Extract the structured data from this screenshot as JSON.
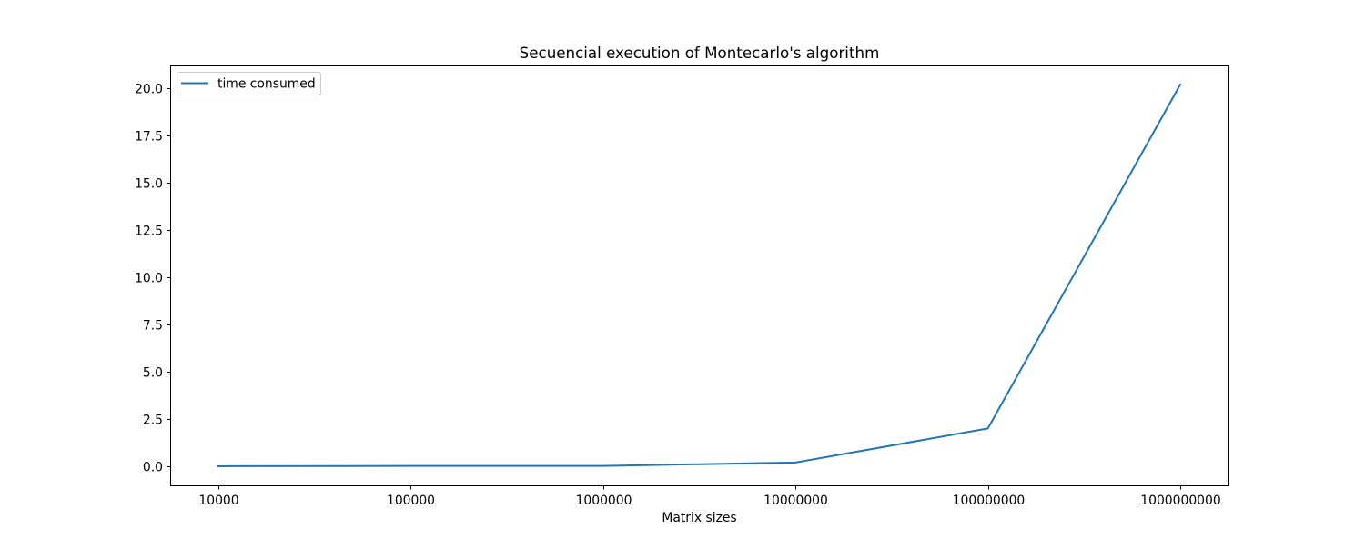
{
  "chart_data": {
    "type": "line",
    "title": "Secuencial execution of Montecarlo's algorithm",
    "xlabel": "Matrix sizes",
    "ylabel": "",
    "categories": [
      "10000",
      "100000",
      "1000000",
      "10000000",
      "100000000",
      "1000000000"
    ],
    "series": [
      {
        "name": "time consumed",
        "values": [
          0.002,
          0.02,
          0.02,
          0.2,
          2.0,
          20.2
        ],
        "color": "#1f77b4"
      }
    ],
    "ylim": [
      -1.01,
      21.21
    ],
    "yticks": [
      0.0,
      2.5,
      5.0,
      7.5,
      10.0,
      12.5,
      15.0,
      17.5,
      20.0
    ],
    "ytick_labels": [
      "0.0",
      "2.5",
      "5.0",
      "7.5",
      "10.0",
      "12.5",
      "15.0",
      "17.5",
      "20.0"
    ],
    "grid": false,
    "legend_position": "upper-left"
  }
}
